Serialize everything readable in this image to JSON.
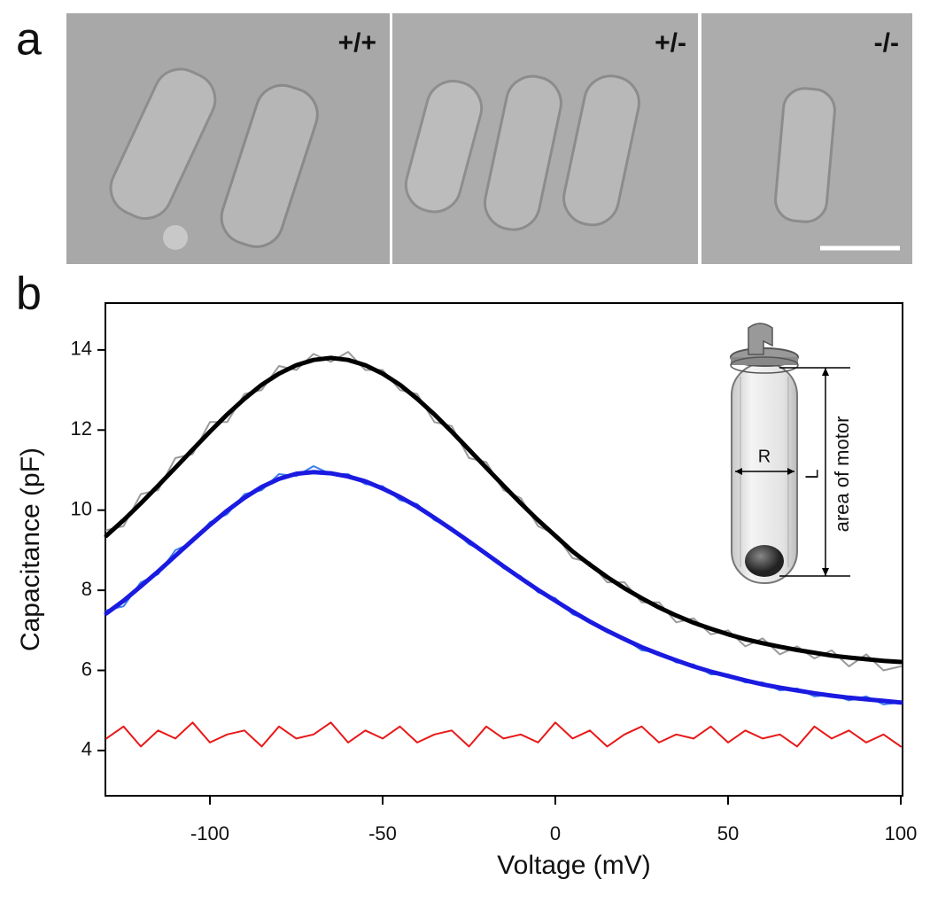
{
  "panel_a": {
    "label": "a",
    "images": [
      {
        "label": "+/+"
      },
      {
        "label": "+/-"
      },
      {
        "label": "-/-"
      }
    ]
  },
  "chart_data": {
    "type": "line",
    "panel_label": "b",
    "xlabel": "Voltage (mV)",
    "ylabel": "Capacitance (pF)",
    "annotations": [
      "R",
      "L",
      "area of motor"
    ],
    "x": [
      -130,
      -125,
      -120,
      -115,
      -110,
      -105,
      -100,
      -95,
      -90,
      -85,
      -80,
      -75,
      -70,
      -65,
      -60,
      -55,
      -50,
      -45,
      -40,
      -35,
      -30,
      -25,
      -20,
      -15,
      -10,
      -5,
      0,
      5,
      10,
      15,
      20,
      25,
      30,
      35,
      40,
      45,
      50,
      55,
      60,
      65,
      70,
      75,
      80,
      85,
      90,
      95,
      100
    ],
    "series": [
      {
        "color": "#9a9a9a",
        "width": 2,
        "values": [
          9.5,
          9.6,
          10.4,
          10.5,
          11.3,
          11.4,
          12.2,
          12.2,
          12.9,
          13.0,
          13.6,
          13.5,
          13.9,
          13.7,
          13.95,
          13.5,
          13.5,
          13.0,
          12.9,
          12.2,
          12.1,
          11.3,
          11.2,
          10.5,
          10.3,
          9.6,
          9.4,
          8.8,
          8.7,
          8.2,
          8.2,
          7.7,
          7.7,
          7.2,
          7.3,
          6.9,
          7.0,
          6.6,
          6.8,
          6.4,
          6.6,
          6.3,
          6.5,
          6.1,
          6.4,
          6.0,
          6.1
        ]
      },
      {
        "color": "#000000",
        "width": 5,
        "values": [
          9.36,
          9.75,
          10.17,
          10.61,
          11.06,
          11.51,
          11.96,
          12.39,
          12.78,
          13.13,
          13.41,
          13.62,
          13.75,
          13.8,
          13.75,
          13.62,
          13.41,
          13.13,
          12.78,
          12.39,
          11.96,
          11.51,
          11.06,
          10.61,
          10.17,
          9.75,
          9.36,
          8.97,
          8.64,
          8.33,
          8.05,
          7.8,
          7.57,
          7.37,
          7.19,
          7.04,
          6.9,
          6.78,
          6.68,
          6.59,
          6.51,
          6.44,
          6.37,
          6.32,
          6.28,
          6.24,
          6.21
        ]
      },
      {
        "color": "#3b7ded",
        "width": 2,
        "values": [
          7.5,
          7.6,
          8.2,
          8.4,
          9.0,
          9.2,
          9.7,
          9.9,
          10.4,
          10.5,
          10.9,
          10.85,
          11.1,
          10.9,
          10.9,
          10.65,
          10.6,
          10.25,
          10.15,
          9.75,
          9.55,
          9.15,
          8.95,
          8.55,
          8.35,
          7.95,
          7.8,
          7.4,
          7.25,
          6.95,
          6.8,
          6.5,
          6.45,
          6.2,
          6.15,
          5.9,
          5.9,
          5.7,
          5.7,
          5.5,
          5.55,
          5.35,
          5.4,
          5.25,
          5.35,
          5.15,
          5.2
        ]
      },
      {
        "color": "#1a1ae0",
        "width": 5,
        "values": [
          7.42,
          7.74,
          8.1,
          8.47,
          8.86,
          9.25,
          9.63,
          9.99,
          10.31,
          10.58,
          10.78,
          10.91,
          10.95,
          10.92,
          10.84,
          10.72,
          10.54,
          10.33,
          10.09,
          9.81,
          9.52,
          9.22,
          8.91,
          8.6,
          8.3,
          8.01,
          7.74,
          7.47,
          7.22,
          6.99,
          6.78,
          6.58,
          6.41,
          6.25,
          6.1,
          5.97,
          5.86,
          5.75,
          5.65,
          5.57,
          5.5,
          5.43,
          5.37,
          5.32,
          5.28,
          5.24,
          5.2
        ]
      },
      {
        "color": "#e81818",
        "width": 2,
        "values": [
          4.3,
          4.6,
          4.1,
          4.5,
          4.3,
          4.7,
          4.2,
          4.4,
          4.5,
          4.1,
          4.6,
          4.3,
          4.4,
          4.7,
          4.2,
          4.5,
          4.3,
          4.6,
          4.2,
          4.4,
          4.5,
          4.1,
          4.6,
          4.3,
          4.4,
          4.2,
          4.7,
          4.3,
          4.5,
          4.1,
          4.4,
          4.6,
          4.2,
          4.4,
          4.3,
          4.6,
          4.2,
          4.5,
          4.3,
          4.4,
          4.1,
          4.6,
          4.3,
          4.5,
          4.2,
          4.4,
          4.1
        ]
      }
    ],
    "xlim": [
      -130,
      100
    ],
    "xticks": [
      -100,
      -50,
      0,
      50,
      100
    ],
    "ylim": [
      2.87,
      15.17
    ],
    "yticks": [
      4,
      6,
      8,
      10,
      12,
      14
    ]
  }
}
